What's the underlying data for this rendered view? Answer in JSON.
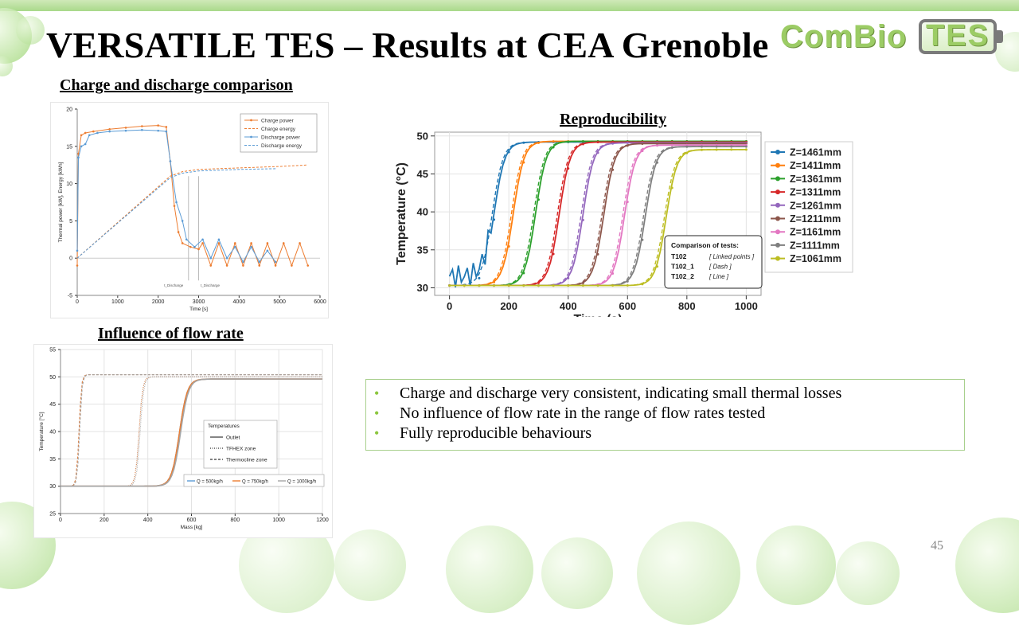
{
  "slide": {
    "title": "VERSATILE TES – Results at CEA Grenoble",
    "page_number": "45",
    "logo": {
      "part1": "ComBio",
      "part2": "TES"
    }
  },
  "sections": {
    "charge": "Charge and discharge comparison",
    "repro": "Reproducibility",
    "flow": "Influence of flow rate"
  },
  "bullets": [
    "Charge and discharge very consistent, indicating small thermal losses",
    "No influence of flow rate in the range of flow rates tested",
    "Fully reproducible behaviours"
  ],
  "colors": {
    "accent_green": "#8cc63f",
    "border_green": "#a8d08d",
    "charge": "#ed7d31",
    "discharge": "#5b9bd5"
  },
  "chart_data": [
    {
      "id": "charge_discharge",
      "type": "line",
      "xlabel": "Time [s]",
      "ylabel": "Thermal power [kW], Energy [kWh]",
      "xlim": [
        0,
        6000
      ],
      "ylim": [
        -5,
        20
      ],
      "xticks": [
        0,
        1000,
        2000,
        3000,
        4000,
        5000,
        6000
      ],
      "yticks": [
        -5,
        0,
        5,
        10,
        15,
        20
      ],
      "annotations": [
        "t_Discharge",
        "t_Discharge"
      ],
      "legend_position": "top-right",
      "series": [
        {
          "name": "Charge power",
          "style": "solid-marker",
          "color": "#ed7d31",
          "x": [
            0,
            30,
            100,
            200,
            400,
            800,
            1200,
            1600,
            2000,
            2200,
            2300,
            2400,
            2500,
            2600,
            2800,
            3000,
            3100,
            3300,
            3500,
            3700,
            3900,
            4100,
            4300,
            4500,
            4700,
            4900,
            5100,
            5300,
            5500,
            5700
          ],
          "y": [
            -1,
            14,
            16.5,
            16.8,
            17.0,
            17.3,
            17.5,
            17.7,
            17.8,
            17.6,
            13.0,
            7.0,
            3.5,
            2.0,
            1.5,
            1.2,
            2.0,
            -1.0,
            2.0,
            -1.0,
            2.0,
            -1.0,
            2.0,
            -1.0,
            2.0,
            -1.0,
            2.0,
            -1.0,
            2.0,
            -1.0
          ]
        },
        {
          "name": "Charge energy",
          "style": "dashed",
          "color": "#ed7d31",
          "x": [
            0,
            2300,
            2600,
            3000,
            4000,
            5000,
            5700
          ],
          "y": [
            0,
            11.0,
            11.6,
            11.9,
            12.1,
            12.3,
            12.5
          ]
        },
        {
          "name": "Discharge power",
          "style": "solid-marker",
          "color": "#5b9bd5",
          "x": [
            0,
            30,
            100,
            200,
            300,
            500,
            800,
            1200,
            1600,
            2000,
            2200,
            2300,
            2450,
            2600,
            2700,
            2900,
            3100,
            3300,
            3500,
            3700,
            3900,
            4100,
            4300,
            4500,
            4700,
            4900
          ],
          "y": [
            1,
            13.5,
            15.0,
            15.3,
            16.5,
            16.8,
            17.0,
            17.1,
            17.2,
            17.1,
            17.0,
            13.0,
            7.5,
            5.0,
            2.5,
            1.5,
            2.5,
            0.0,
            2.5,
            0.0,
            1.5,
            -0.5,
            1.5,
            -0.5,
            1.0,
            -0.5
          ]
        },
        {
          "name": "Discharge energy",
          "style": "dashed",
          "color": "#5b9bd5",
          "x": [
            0,
            2300,
            2600,
            3000,
            4000,
            4900
          ],
          "y": [
            0,
            10.8,
            11.4,
            11.7,
            11.9,
            12.0
          ]
        }
      ]
    },
    {
      "id": "reproducibility",
      "type": "line",
      "xlabel": "Time (s)",
      "ylabel": "Temperature (°C)",
      "xlim": [
        -50,
        1050
      ],
      "ylim": [
        29,
        50.5
      ],
      "xticks": [
        0,
        200,
        400,
        600,
        800,
        1000
      ],
      "yticks": [
        30,
        35,
        40,
        45,
        50
      ],
      "legend_position": "right",
      "note": {
        "title": "Comparison of tests:",
        "rows": [
          {
            "test": "T102",
            "style": "[ Linked points ]"
          },
          {
            "test": "T102_1",
            "style": "[ Dash ]"
          },
          {
            "test": "T102_2",
            "style": "[ Line ]"
          }
        ]
      },
      "series": [
        {
          "name": "Z=1461mm",
          "color": "#1f77b4",
          "midpoint": 150,
          "final": 49.2
        },
        {
          "name": "Z=1411mm",
          "color": "#ff7f0e",
          "midpoint": 215,
          "final": 49.3
        },
        {
          "name": "Z=1361mm",
          "color": "#2ca02c",
          "midpoint": 290,
          "final": 49.3
        },
        {
          "name": "Z=1311mm",
          "color": "#d62728",
          "midpoint": 370,
          "final": 49.2
        },
        {
          "name": "Z=1261mm",
          "color": "#9467bd",
          "midpoint": 450,
          "final": 49.1
        },
        {
          "name": "Z=1211mm",
          "color": "#8c564b",
          "midpoint": 520,
          "final": 49.0
        },
        {
          "name": "Z=1161mm",
          "color": "#e377c2",
          "midpoint": 590,
          "final": 48.8
        },
        {
          "name": "Z=1111mm",
          "color": "#7f7f7f",
          "midpoint": 660,
          "final": 48.6
        },
        {
          "name": "Z=1061mm",
          "color": "#bcbd22",
          "midpoint": 730,
          "final": 48.2
        }
      ]
    },
    {
      "id": "flow_rate",
      "type": "line",
      "xlabel": "Mass [kg]",
      "ylabel": "Temperature [°C]",
      "xlim": [
        0,
        1200
      ],
      "ylim": [
        25,
        55
      ],
      "xticks": [
        0,
        200,
        400,
        600,
        800,
        1000,
        1200
      ],
      "yticks": [
        25,
        30,
        35,
        40,
        45,
        50,
        55
      ],
      "legend_position": "center-right",
      "legend_title": "Temperatures",
      "styles": [
        {
          "name": "Outlet",
          "style": "solid"
        },
        {
          "name": "TFHEX zone",
          "style": "dotted"
        },
        {
          "name": "Thermocline zone",
          "style": "dashed"
        }
      ],
      "series": [
        {
          "name": "Q = 500kg/h",
          "color": "#5b9bd5",
          "outlet_mid": 545,
          "outlet_end": 920,
          "tfhex_mid": 360,
          "thermo_mid": 85
        },
        {
          "name": "Q = 750kg/h",
          "color": "#ed7d31",
          "outlet_mid": 545,
          "outlet_end": 1200,
          "tfhex_mid": 360,
          "thermo_mid": 85
        },
        {
          "name": "Q = 1000kg/h",
          "color": "#a5a5a5",
          "outlet_mid": 550,
          "outlet_end": 1200,
          "tfhex_mid": 365,
          "thermo_mid": 88
        }
      ]
    }
  ]
}
